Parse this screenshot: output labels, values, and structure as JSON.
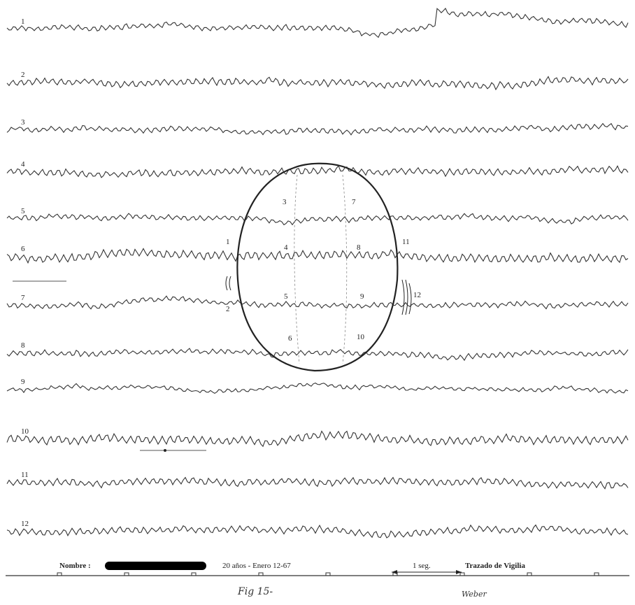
{
  "channels": [
    "1",
    "2",
    "3",
    "4",
    "5",
    "6",
    "7",
    "8",
    "9",
    "10",
    "11",
    "12"
  ],
  "electrodes": [
    "1",
    "2",
    "3",
    "4",
    "5",
    "6",
    "7",
    "8",
    "9",
    "10",
    "11",
    "12"
  ],
  "footer": {
    "name_label": "Nombre :",
    "age_date": "20 años - Enero 12-67",
    "scale": "1 seg.",
    "recording": "Trazado de Vigilia"
  },
  "handwriting": {
    "figure": "Fig 15-",
    "signature": "Weber"
  }
}
